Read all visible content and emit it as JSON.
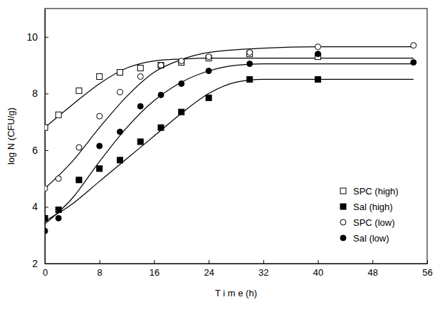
{
  "chart_data": {
    "type": "scatter",
    "x_label": "T i m e (h)",
    "y_label": "log N (CFU/g)",
    "xlim": [
      0,
      56
    ],
    "xticks": [
      0,
      8,
      16,
      24,
      32,
      40,
      48,
      56
    ],
    "ylim": [
      2,
      11
    ],
    "yticks": [
      2,
      4,
      6,
      8,
      10
    ],
    "legend": "lower right",
    "series": [
      {
        "name": "SPC (high)",
        "color": "#000000",
        "marker": "open-square",
        "x": [
          0,
          2,
          5,
          8,
          11,
          14,
          17,
          20,
          24,
          30,
          40
        ],
        "values": [
          6.8,
          7.25,
          8.1,
          8.6,
          8.75,
          8.9,
          9.0,
          9.1,
          9.25,
          9.4,
          9.3
        ],
        "fit_x": [
          0,
          4,
          8,
          12,
          16,
          20,
          24,
          32,
          54
        ],
        "fit_values": [
          6.8,
          7.6,
          8.35,
          8.9,
          9.15,
          9.22,
          9.25,
          9.25,
          9.25
        ]
      },
      {
        "name": "Sal (high)",
        "color": "#000000",
        "marker": "square",
        "x": [
          0,
          2,
          5,
          8,
          11,
          14,
          17,
          20,
          24,
          30,
          40
        ],
        "values": [
          3.6,
          3.9,
          4.95,
          5.35,
          5.65,
          6.3,
          6.8,
          7.35,
          7.85,
          8.5,
          8.5
        ],
        "fit_x": [
          0,
          4,
          8,
          12,
          16,
          20,
          24,
          28,
          32,
          54
        ],
        "fit_values": [
          3.5,
          4.1,
          4.9,
          5.7,
          6.5,
          7.3,
          8.0,
          8.4,
          8.5,
          8.5
        ]
      },
      {
        "name": "SPC (low)",
        "color": "#000000",
        "marker": "open-circle",
        "x": [
          0,
          2,
          5,
          8,
          11,
          14,
          17,
          20,
          24,
          30,
          40,
          54
        ],
        "values": [
          4.65,
          5.0,
          6.1,
          7.2,
          8.05,
          8.6,
          9.0,
          9.15,
          9.3,
          9.45,
          9.65,
          9.7
        ],
        "fit_x": [
          0,
          4,
          8,
          12,
          16,
          20,
          24,
          32,
          40,
          54
        ],
        "fit_values": [
          4.65,
          5.6,
          6.8,
          7.9,
          8.75,
          9.2,
          9.45,
          9.6,
          9.65,
          9.65
        ]
      },
      {
        "name": "Sal (low)",
        "color": "#000000",
        "marker": "circle",
        "x": [
          0,
          2,
          5,
          8,
          11,
          14,
          17,
          20,
          24,
          30,
          40,
          54
        ],
        "values": [
          3.15,
          3.6,
          4.95,
          6.15,
          6.65,
          7.55,
          7.95,
          8.35,
          8.8,
          9.05,
          9.4,
          9.1
        ],
        "fit_x": [
          0,
          4,
          8,
          12,
          16,
          20,
          24,
          28,
          32,
          54
        ],
        "fit_values": [
          3.4,
          4.3,
          5.6,
          6.8,
          7.75,
          8.4,
          8.8,
          9.0,
          9.05,
          9.05
        ]
      }
    ]
  }
}
